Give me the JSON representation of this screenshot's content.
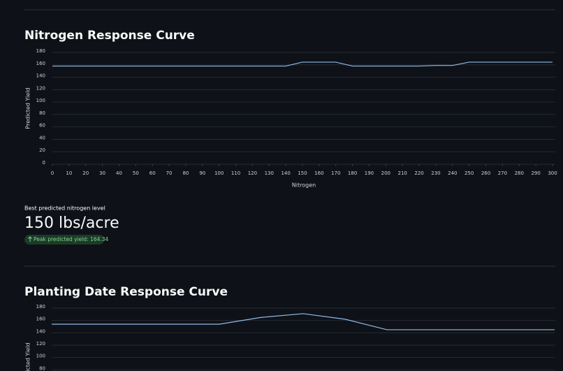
{
  "chart_data": [
    {
      "type": "line",
      "title": "Nitrogen Response Curve",
      "x_label": "Nitrogen",
      "y_label": "Predicted Yield",
      "x": [
        0,
        10,
        20,
        30,
        40,
        50,
        60,
        70,
        80,
        90,
        100,
        110,
        120,
        130,
        140,
        150,
        160,
        170,
        180,
        190,
        200,
        210,
        220,
        230,
        240,
        250,
        260,
        270,
        280,
        290,
        300
      ],
      "values": [
        158,
        158,
        158,
        158,
        158,
        158,
        158,
        158,
        158,
        158,
        158,
        158,
        158,
        158,
        158,
        164.34,
        164.34,
        164.34,
        158,
        158,
        158,
        158,
        158,
        159,
        159,
        164.34,
        164.34,
        164.34,
        164.34,
        164.34,
        164.34
      ],
      "color": "#8fbbe8",
      "xlim": [
        0,
        300
      ],
      "xticks": [
        0,
        10,
        20,
        30,
        40,
        50,
        60,
        70,
        80,
        90,
        100,
        110,
        120,
        130,
        140,
        150,
        160,
        170,
        180,
        190,
        200,
        210,
        220,
        230,
        240,
        250,
        260,
        270,
        280,
        290,
        300
      ],
      "ylim": [
        0,
        180
      ],
      "yticks": [
        0,
        20,
        40,
        60,
        80,
        100,
        120,
        140,
        160,
        180
      ],
      "grid": true
    },
    {
      "type": "line",
      "title": "Planting Date Response Curve",
      "y_label": "Predicted Yield",
      "values": [
        154,
        154,
        154,
        154,
        154,
        165,
        171,
        162,
        145,
        145,
        145,
        145,
        145
      ],
      "color": "#8fbbe8",
      "ylim": [
        0,
        180
      ],
      "yticks": [
        80,
        100,
        120,
        140,
        160,
        180
      ],
      "grid": true
    }
  ],
  "metric": {
    "label": "Best predicted nitrogen level",
    "value": "150 lbs/acre",
    "delta": "Peak predicted yield: 164.34"
  }
}
